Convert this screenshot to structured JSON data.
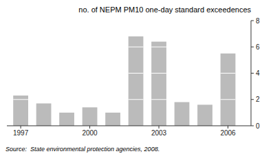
{
  "chart_data": {
    "type": "bar",
    "title": "no. of NEPM PM10 one-day standard exceedences",
    "source": "Source:  State environmental protection agencies, 2008.",
    "x": [
      1997,
      1998,
      1999,
      2000,
      2001,
      2002,
      2003,
      2004,
      2005,
      2006
    ],
    "values": [
      2.3,
      1.7,
      1.0,
      1.4,
      1.0,
      6.8,
      6.4,
      1.8,
      1.6,
      5.5
    ],
    "color": "#bbbbbb",
    "xlim": [
      1996.4,
      2007.0
    ],
    "xticks": [
      1997,
      2000,
      2003,
      2006
    ],
    "ylim": [
      0,
      8
    ],
    "yticks": [
      0,
      2,
      4,
      6,
      8
    ],
    "grid": false
  }
}
